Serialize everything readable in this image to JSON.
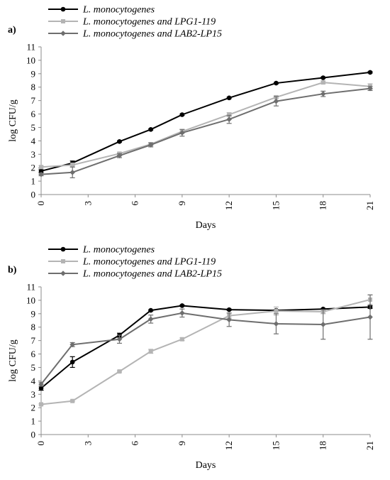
{
  "chart_data": [
    {
      "type": "line",
      "panel_label": "a)",
      "xlabel": "Days",
      "ylabel": "log CFU/g",
      "xlim": [
        0,
        21
      ],
      "ylim": [
        0,
        11
      ],
      "x_ticks": [
        "0",
        "3",
        "6",
        "9",
        "12",
        "15",
        "18",
        "21"
      ],
      "y_ticks": [
        "0",
        "1",
        "2",
        "3",
        "4",
        "5",
        "6",
        "7",
        "8",
        "9",
        "10",
        "11"
      ],
      "grid": false,
      "legend_placement": "top-left",
      "series": [
        {
          "name": "L. monocytogenes",
          "color": "#000000",
          "marker": "circle",
          "x": [
            0,
            2,
            5,
            7,
            9,
            12,
            15,
            18,
            21
          ],
          "y": [
            1.75,
            2.35,
            3.95,
            4.85,
            5.95,
            7.2,
            8.3,
            8.7,
            9.1
          ],
          "err": [
            0.1,
            0.15,
            0.05,
            0.05,
            0.05,
            0.05,
            0.05,
            0.05,
            0.05
          ]
        },
        {
          "name": "L. monocytogenes and LPG1-119",
          "color": "#b4b4b4",
          "marker": "square",
          "x": [
            0,
            2,
            5,
            7,
            9,
            12,
            15,
            18,
            21
          ],
          "y": [
            2.05,
            2.2,
            3.05,
            3.75,
            4.7,
            5.95,
            7.25,
            8.35,
            8.05
          ],
          "err": [
            0.1,
            0.15,
            0.1,
            0.1,
            0.15,
            0.15,
            0.1,
            0.1,
            0.2
          ]
        },
        {
          "name": "L. monocytogenes and LAB2-LP15",
          "color": "#6e6e6e",
          "marker": "diamond",
          "x": [
            0,
            2,
            5,
            7,
            9,
            12,
            15,
            18,
            21
          ],
          "y": [
            1.5,
            1.65,
            2.9,
            3.7,
            4.6,
            5.6,
            6.95,
            7.5,
            7.9
          ],
          "err": [
            0.1,
            0.4,
            0.15,
            0.15,
            0.25,
            0.3,
            0.35,
            0.2,
            0.15
          ]
        }
      ]
    },
    {
      "type": "line",
      "panel_label": "b)",
      "xlabel": "Days",
      "ylabel": "log CFU/g",
      "xlim": [
        0,
        21
      ],
      "ylim": [
        0,
        11
      ],
      "x_ticks": [
        "0",
        "3",
        "6",
        "9",
        "12",
        "15",
        "18",
        "21"
      ],
      "y_ticks": [
        "0",
        "1",
        "2",
        "3",
        "4",
        "5",
        "6",
        "7",
        "8",
        "9",
        "10",
        "11"
      ],
      "grid": false,
      "legend_placement": "top-left",
      "series": [
        {
          "name": "L. monocytogenes",
          "color": "#000000",
          "marker": "circle",
          "x": [
            0,
            2,
            5,
            7,
            9,
            12,
            15,
            18,
            21
          ],
          "y": [
            3.45,
            5.4,
            7.4,
            9.25,
            9.6,
            9.3,
            9.25,
            9.35,
            9.5
          ],
          "err": [
            0.15,
            0.4,
            0.15,
            0.05,
            0.05,
            0.05,
            0.05,
            0.05,
            0.1
          ]
        },
        {
          "name": "L. monocytogenes and LPG1-119",
          "color": "#b4b4b4",
          "marker": "square",
          "x": [
            0,
            2,
            5,
            7,
            9,
            12,
            15,
            18,
            21
          ],
          "y": [
            2.25,
            2.5,
            4.7,
            6.2,
            7.1,
            8.85,
            9.2,
            9.15,
            10.05
          ],
          "err": [
            0.05,
            0.05,
            0.05,
            0.15,
            0.1,
            0.2,
            0.3,
            0.15,
            0.35
          ]
        },
        {
          "name": "L. monocytogenes and LAB2-LP15",
          "color": "#6e6e6e",
          "marker": "diamond",
          "x": [
            0,
            2,
            5,
            7,
            9,
            12,
            15,
            18,
            21
          ],
          "y": [
            3.75,
            6.7,
            7.1,
            8.6,
            9.05,
            8.55,
            8.25,
            8.2,
            8.75
          ],
          "err": [
            0.15,
            0.15,
            0.3,
            0.3,
            0.3,
            0.5,
            0.75,
            1.1,
            1.65
          ]
        }
      ]
    }
  ]
}
